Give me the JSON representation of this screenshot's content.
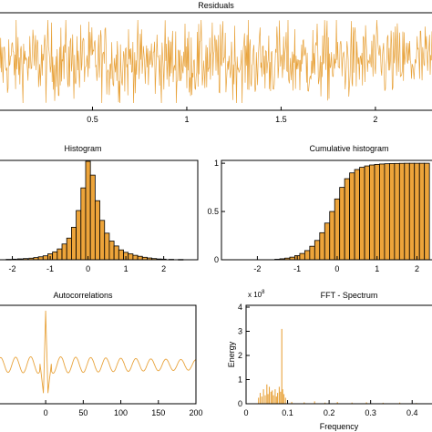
{
  "style": {
    "series_color": "#E8A33C",
    "bar_color": "#EDA43A",
    "axis_color": "#000000"
  },
  "chart_data": [
    {
      "id": "residuals",
      "type": "line",
      "title": "Residuals",
      "xlabel": "",
      "ylabel": "",
      "x_ticks": [
        0.5,
        1,
        1.5,
        2
      ],
      "x_tick_labels": [
        "0.5",
        "1",
        "1.5",
        "2"
      ],
      "xlim": [
        0.0,
        2.3
      ],
      "ylim": [
        -1.6,
        1.6
      ],
      "noise_amplitude": 1.0,
      "noise_points": 700
    },
    {
      "id": "histogram",
      "type": "bar",
      "title": "Histogram",
      "x_ticks": [
        -2,
        -1,
        0,
        1,
        2
      ],
      "x_tick_labels": [
        "-2",
        "-1",
        "0",
        "1",
        "2"
      ],
      "xlim": [
        -2.35,
        2.9
      ],
      "ylim": [
        0,
        1
      ],
      "bin_width": 0.125,
      "bins": [
        {
          "x": -2.1,
          "v": 0.004
        },
        {
          "x": -1.95,
          "v": 0.006
        },
        {
          "x": -1.8,
          "v": 0.009
        },
        {
          "x": -1.65,
          "v": 0.012
        },
        {
          "x": -1.5,
          "v": 0.016
        },
        {
          "x": -1.375,
          "v": 0.022
        },
        {
          "x": -1.25,
          "v": 0.03
        },
        {
          "x": -1.125,
          "v": 0.04
        },
        {
          "x": -1.0,
          "v": 0.06
        },
        {
          "x": -0.875,
          "v": 0.08
        },
        {
          "x": -0.75,
          "v": 0.11
        },
        {
          "x": -0.625,
          "v": 0.16
        },
        {
          "x": -0.5,
          "v": 0.22
        },
        {
          "x": -0.375,
          "v": 0.33
        },
        {
          "x": -0.25,
          "v": 0.5
        },
        {
          "x": -0.125,
          "v": 0.73
        },
        {
          "x": 0.0,
          "v": 1.0
        },
        {
          "x": 0.125,
          "v": 0.86
        },
        {
          "x": 0.25,
          "v": 0.6
        },
        {
          "x": 0.375,
          "v": 0.4
        },
        {
          "x": 0.5,
          "v": 0.27
        },
        {
          "x": 0.625,
          "v": 0.19
        },
        {
          "x": 0.75,
          "v": 0.14
        },
        {
          "x": 0.875,
          "v": 0.1
        },
        {
          "x": 1.0,
          "v": 0.075
        },
        {
          "x": 1.125,
          "v": 0.06
        },
        {
          "x": 1.25,
          "v": 0.045
        },
        {
          "x": 1.375,
          "v": 0.035
        },
        {
          "x": 1.5,
          "v": 0.025
        },
        {
          "x": 1.625,
          "v": 0.018
        },
        {
          "x": 1.75,
          "v": 0.012
        },
        {
          "x": 1.875,
          "v": 0.008
        },
        {
          "x": 2.0,
          "v": 0.006
        },
        {
          "x": 2.2,
          "v": 0.004
        },
        {
          "x": 2.45,
          "v": 0.003
        }
      ]
    },
    {
      "id": "cumulative",
      "type": "bar",
      "title": "Cumulative histogram",
      "x_ticks": [
        -2,
        -1,
        0,
        1,
        2
      ],
      "x_tick_labels": [
        "-2",
        "-1",
        "0",
        "1",
        "2"
      ],
      "y_ticks": [
        0,
        0.5,
        1
      ],
      "y_tick_labels": [
        "0",
        "0.5",
        "1"
      ],
      "xlim": [
        -2.9,
        2.4
      ],
      "ylim": [
        0,
        1.02
      ],
      "bin_width": 0.125,
      "bins": [
        {
          "x": -1.5,
          "v": 0.005
        },
        {
          "x": -1.375,
          "v": 0.01
        },
        {
          "x": -1.25,
          "v": 0.017
        },
        {
          "x": -1.125,
          "v": 0.027
        },
        {
          "x": -1.0,
          "v": 0.043
        },
        {
          "x": -0.875,
          "v": 0.065
        },
        {
          "x": -0.75,
          "v": 0.095
        },
        {
          "x": -0.625,
          "v": 0.14
        },
        {
          "x": -0.5,
          "v": 0.2
        },
        {
          "x": -0.375,
          "v": 0.28
        },
        {
          "x": -0.25,
          "v": 0.38
        },
        {
          "x": -0.125,
          "v": 0.5
        },
        {
          "x": 0.0,
          "v": 0.63
        },
        {
          "x": 0.125,
          "v": 0.75
        },
        {
          "x": 0.25,
          "v": 0.84
        },
        {
          "x": 0.375,
          "v": 0.9
        },
        {
          "x": 0.5,
          "v": 0.935
        },
        {
          "x": 0.625,
          "v": 0.958
        },
        {
          "x": 0.75,
          "v": 0.972
        },
        {
          "x": 0.875,
          "v": 0.982
        },
        {
          "x": 1.0,
          "v": 0.988
        },
        {
          "x": 1.125,
          "v": 0.992
        },
        {
          "x": 1.25,
          "v": 0.995
        },
        {
          "x": 1.375,
          "v": 0.997
        },
        {
          "x": 1.5,
          "v": 0.998
        },
        {
          "x": 1.625,
          "v": 0.999
        },
        {
          "x": 1.75,
          "v": 1.0
        },
        {
          "x": 1.875,
          "v": 1.0
        },
        {
          "x": 2.0,
          "v": 1.0
        },
        {
          "x": 2.125,
          "v": 1.0
        },
        {
          "x": 2.25,
          "v": 1.0
        }
      ]
    },
    {
      "id": "autocorr",
      "type": "line",
      "title": "Autocorrelations",
      "x_ticks": [
        0,
        50,
        100,
        150,
        200
      ],
      "x_tick_labels": [
        "0",
        "50",
        "100",
        "150",
        "200"
      ],
      "xlim": [
        -62,
        200
      ],
      "ylim": [
        -0.7,
        1.05
      ],
      "period": 20,
      "baseline": -0.02,
      "envelope": 0.16,
      "peak": 1.0,
      "side_lobe": -0.55
    },
    {
      "id": "fft",
      "type": "line",
      "title": "FFT - Spectrum",
      "xlabel": "Frequency",
      "ylabel": "Energy",
      "exponent_label": "x 10",
      "exponent": "8",
      "x_ticks": [
        0,
        0.1,
        0.2,
        0.3,
        0.4
      ],
      "x_tick_labels": [
        "0",
        "0.1",
        "0.2",
        "0.3",
        "0.4"
      ],
      "y_ticks": [
        0,
        1,
        2,
        3,
        4
      ],
      "y_tick_labels": [
        "0",
        "1",
        "2",
        "3",
        "4"
      ],
      "xlim": [
        0,
        0.45
      ],
      "ylim": [
        0,
        4
      ],
      "spikes": [
        {
          "f": 0.03,
          "e": 0.25
        },
        {
          "f": 0.034,
          "e": 0.45
        },
        {
          "f": 0.038,
          "e": 0.3
        },
        {
          "f": 0.042,
          "e": 0.6
        },
        {
          "f": 0.046,
          "e": 0.35
        },
        {
          "f": 0.05,
          "e": 0.8
        },
        {
          "f": 0.053,
          "e": 0.4
        },
        {
          "f": 0.056,
          "e": 0.7
        },
        {
          "f": 0.06,
          "e": 0.5
        },
        {
          "f": 0.063,
          "e": 0.55
        },
        {
          "f": 0.066,
          "e": 0.35
        },
        {
          "f": 0.07,
          "e": 0.6
        },
        {
          "f": 0.073,
          "e": 0.3
        },
        {
          "f": 0.076,
          "e": 0.45
        },
        {
          "f": 0.08,
          "e": 0.7
        },
        {
          "f": 0.083,
          "e": 0.5
        },
        {
          "f": 0.086,
          "e": 3.1
        },
        {
          "f": 0.088,
          "e": 0.6
        },
        {
          "f": 0.091,
          "e": 0.4
        },
        {
          "f": 0.095,
          "e": 0.25
        },
        {
          "f": 0.11,
          "e": 0.08
        },
        {
          "f": 0.14,
          "e": 0.06
        },
        {
          "f": 0.165,
          "e": 0.1
        },
        {
          "f": 0.19,
          "e": 0.05
        },
        {
          "f": 0.22,
          "e": 0.07
        },
        {
          "f": 0.255,
          "e": 0.05
        },
        {
          "f": 0.29,
          "e": 0.06
        },
        {
          "f": 0.33,
          "e": 0.04
        },
        {
          "f": 0.37,
          "e": 0.05
        },
        {
          "f": 0.41,
          "e": 0.03
        }
      ]
    }
  ]
}
